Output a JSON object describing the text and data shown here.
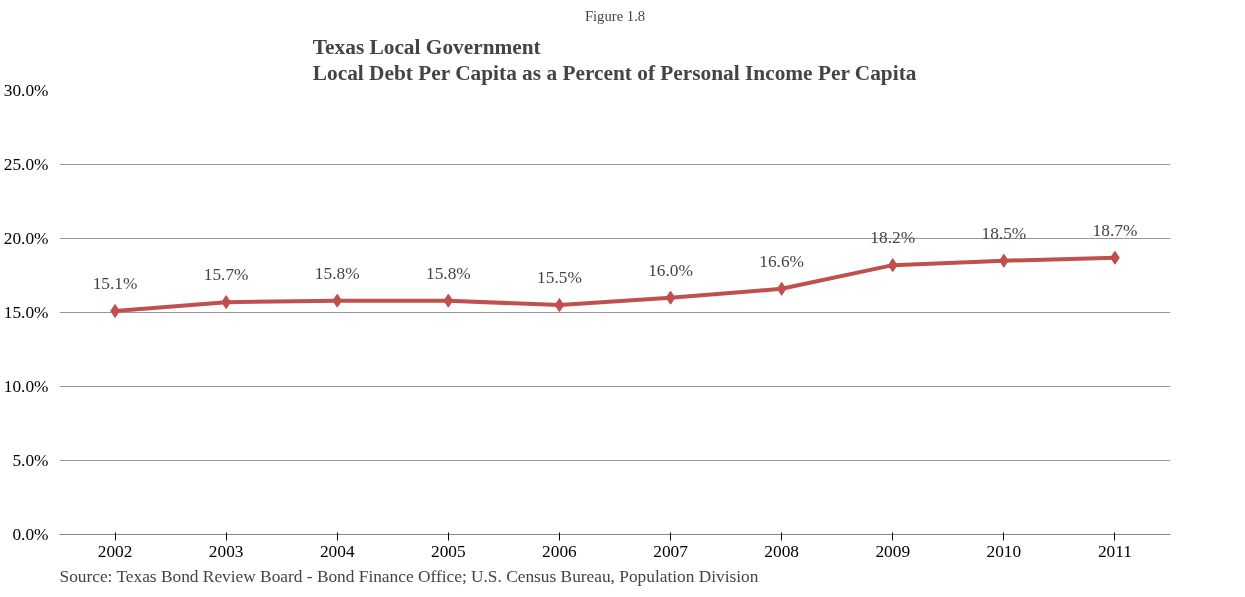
{
  "chart_data": {
    "type": "line",
    "subtitle": "Figure 1.8",
    "title": "Texas Local Government\nLocal Debt Per Capita as a Percent of Personal Income Per Capita",
    "categories": [
      "2002",
      "2003",
      "2004",
      "2005",
      "2006",
      "2007",
      "2008",
      "2009",
      "2010",
      "2011"
    ],
    "series": [
      {
        "color": "#c0504d",
        "values": [
          15.1,
          15.7,
          15.8,
          15.8,
          15.5,
          16.0,
          16.6,
          18.2,
          18.5,
          18.7
        ],
        "value_labels": [
          "15.1%",
          "15.7%",
          "15.8%",
          "15.8%",
          "15.5%",
          "16.0%",
          "16.6%",
          "18.2%",
          "18.5%",
          "18.7%"
        ]
      }
    ],
    "ylim": [
      0,
      30
    ],
    "yticks": [
      {
        "value": 0,
        "label": "0.0%"
      },
      {
        "value": 5,
        "label": "5.0%"
      },
      {
        "value": 10,
        "label": "10.0%"
      },
      {
        "value": 15,
        "label": "15.0%"
      },
      {
        "value": 20,
        "label": "20.0%"
      },
      {
        "value": 25,
        "label": "25.0%"
      },
      {
        "value": 30,
        "label": "30.0%"
      }
    ],
    "grid": "y",
    "marker": "diamond",
    "line_style": "solid",
    "annotations": [
      "Source:  Texas Bond Review Board - Bond Finance Office; U.S. Census Bureau, Population Division"
    ]
  }
}
